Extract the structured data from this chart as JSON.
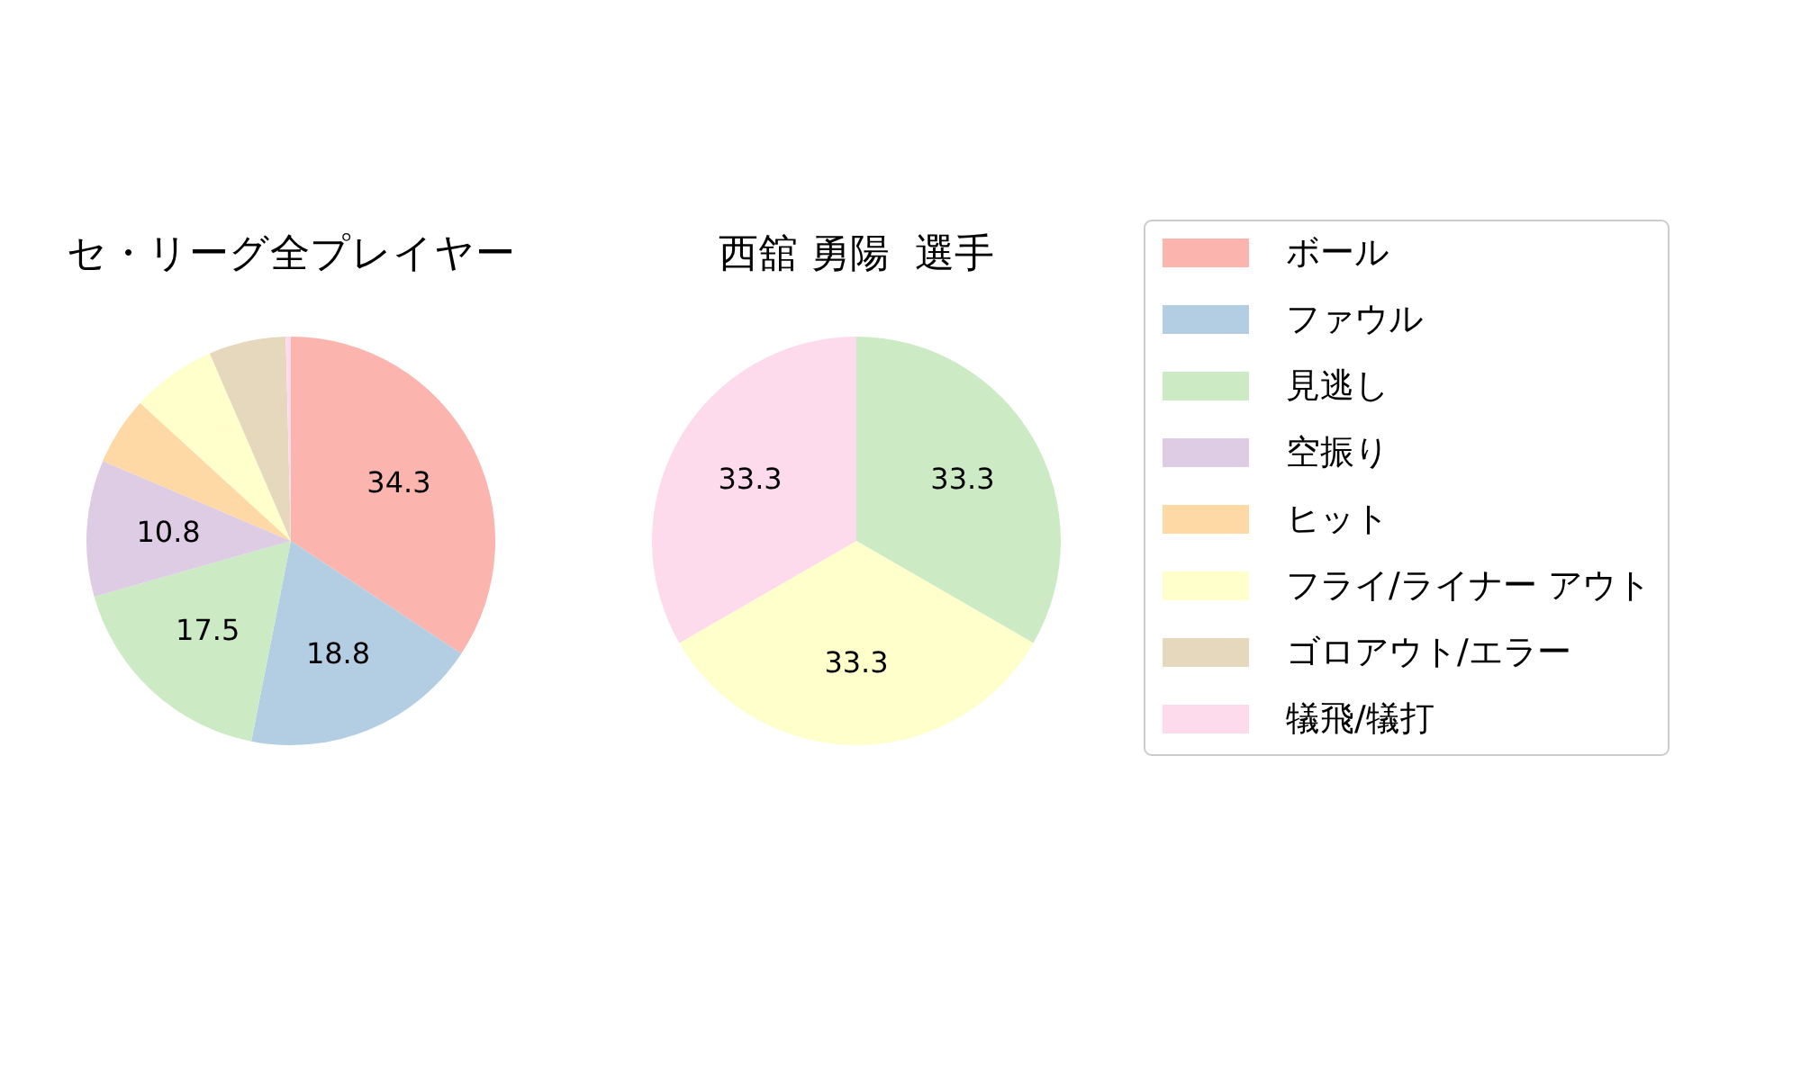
{
  "chart_data": [
    {
      "type": "pie",
      "title": "セ・リーグ全プレイヤー",
      "categories": [
        "ボール",
        "ファウル",
        "見逃し",
        "空振り",
        "ヒット",
        "フライ/ライナー アウト",
        "ゴロアウト/エラー",
        "犠飛/犠打"
      ],
      "values": [
        34.3,
        18.8,
        17.5,
        10.8,
        5.4,
        6.7,
        6.1,
        0.4
      ],
      "colors": [
        "#fbb4ae",
        "#b3cde3",
        "#ccebc5",
        "#decbe4",
        "#fed9a6",
        "#ffffcc",
        "#e5d8bd",
        "#fddaec"
      ],
      "value_labels": [
        "34.3",
        "18.8",
        "17.5",
        "10.8",
        null,
        null,
        null,
        null
      ],
      "legend": "right"
    },
    {
      "type": "pie",
      "title": "西舘 勇陽  選手",
      "categories": [
        null,
        null,
        null
      ],
      "values": [
        33.3,
        33.3,
        33.3
      ],
      "colors": [
        "#ccebc5",
        "#ffffcc",
        "#fddaec"
      ],
      "value_labels": [
        "33.3",
        "33.3",
        "33.3"
      ]
    }
  ]
}
